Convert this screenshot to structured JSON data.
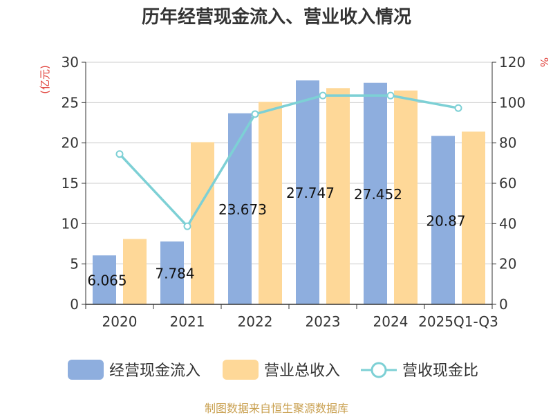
{
  "title": "历年经营现金流入、营业收入情况",
  "source": "制图数据来自恒生聚源数据库",
  "colors": {
    "cash_inflow": "#8eaede",
    "revenue": "#fed898",
    "ratio": "#7dd0d5",
    "unit_label": "#e0403a",
    "source_text": "#c9a050"
  },
  "chart_data": {
    "type": "bar",
    "title": "历年经营现金流入、营业收入情况",
    "categories": [
      "2020",
      "2021",
      "2022",
      "2023",
      "2024",
      "2025Q1-Q3"
    ],
    "y_left": {
      "label": "(亿元)",
      "ylim": [
        0,
        30
      ],
      "ticks": [
        0,
        5,
        10,
        15,
        20,
        25,
        30
      ]
    },
    "y_right": {
      "label": "%",
      "ylim": [
        0,
        120
      ],
      "ticks": [
        0,
        20,
        40,
        60,
        80,
        100,
        120
      ]
    },
    "grid": true,
    "legend_placement": "bottom",
    "series": [
      {
        "name": "经营现金流入",
        "type": "bar",
        "axis": "left",
        "values": [
          6.065,
          7.784,
          23.673,
          27.747,
          27.452,
          20.87
        ],
        "labels": [
          "6.065",
          "7.784",
          "23.673",
          "27.747",
          "27.452",
          "20.87"
        ]
      },
      {
        "name": "营业总收入",
        "type": "bar",
        "axis": "left",
        "values": [
          8.1,
          20.1,
          25.1,
          26.8,
          26.5,
          21.4
        ]
      },
      {
        "name": "营收现金比",
        "type": "line",
        "axis": "right",
        "values": [
          74.5,
          38.7,
          94.3,
          103.5,
          103.5,
          97.3
        ]
      }
    ]
  }
}
